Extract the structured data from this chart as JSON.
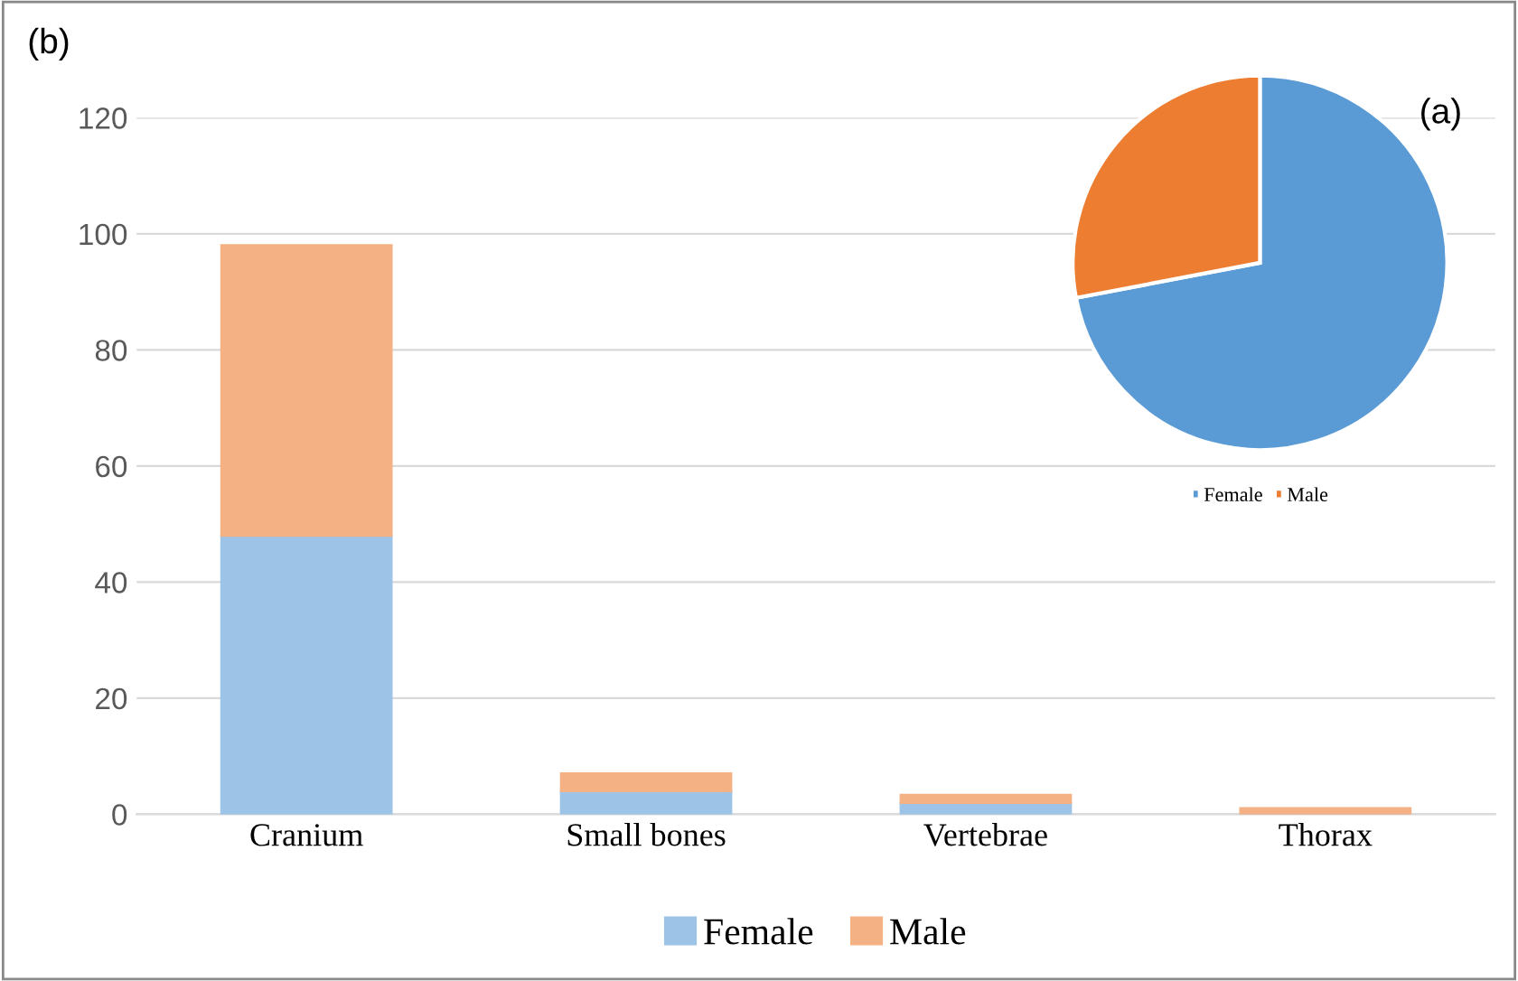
{
  "chart_data": [
    {
      "type": "bar",
      "title": "(b)",
      "categories": [
        "Cranium",
        "Small bones",
        "Vertebrae",
        "Thorax"
      ],
      "stacked": true,
      "series": [
        {
          "name": "Female",
          "color": "#9dc3e6",
          "values": [
            48,
            4,
            2,
            null
          ]
        },
        {
          "name": "Male",
          "color": "#f4b183",
          "values": [
            50,
            3,
            1.3,
            1
          ]
        }
      ],
      "ylim": [
        0,
        120
      ],
      "yticks": [
        0,
        20,
        40,
        60,
        80,
        100,
        120
      ],
      "grid": "y",
      "legend": "bottom"
    },
    {
      "type": "pie",
      "title": "(a)",
      "categories": [
        "Female",
        "Male"
      ],
      "values": [
        72,
        28
      ],
      "colors": [
        "#5b9bd5",
        "#ed7d31"
      ],
      "legend": "bottom"
    }
  ]
}
